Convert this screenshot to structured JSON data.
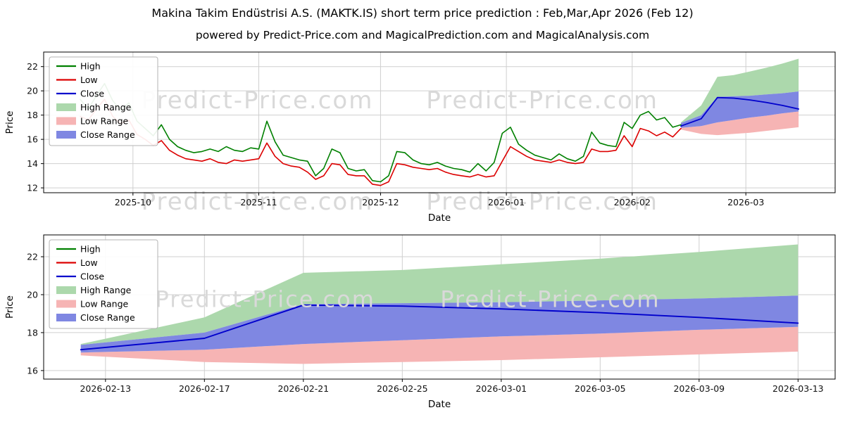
{
  "header": {
    "title": "Makina Takim Endüstrisi A.S. (MAKTK.IS) short term price prediction : Feb,Mar,Apr 2026 (Feb 12)",
    "subtitle": "powered by Predict-Price.com and MagicalPrediction.com and MagicalAnalysis.com"
  },
  "legend": {
    "items": [
      {
        "label": "High",
        "type": "line",
        "color": "high"
      },
      {
        "label": "Low",
        "type": "line",
        "color": "low"
      },
      {
        "label": "Close",
        "type": "line",
        "color": "close"
      },
      {
        "label": "High Range",
        "type": "patch",
        "color": "high_range"
      },
      {
        "label": "Low Range",
        "type": "patch",
        "color": "low_range"
      },
      {
        "label": "Close Range",
        "type": "patch",
        "color": "close_range"
      }
    ]
  },
  "chart_data": {
    "type": "line",
    "watermark": "Predict-Price.com",
    "colors": {
      "high": "#008000",
      "low": "#dc0000",
      "close": "#0000cc",
      "high_range": "#acd8ac",
      "low_range": "#f6b4b4",
      "close_range": "#7f87e2",
      "grid": "#cfcfcf",
      "watermark": "#d9d9d9",
      "tick_text": "#111111"
    },
    "history": {
      "x_unit": "days since 2025-09-17",
      "days": [
        0,
        2,
        4,
        6,
        8,
        10,
        12,
        14,
        16,
        18,
        20,
        22,
        24,
        26,
        28,
        30,
        32,
        34,
        36,
        38,
        40,
        42,
        44,
        46,
        48,
        50,
        52,
        54,
        56,
        58,
        60,
        62,
        64,
        66,
        68,
        70,
        72,
        74,
        76,
        78,
        80,
        82,
        84,
        86,
        88,
        90,
        92,
        94,
        96,
        98,
        100,
        102,
        104,
        106,
        108,
        110,
        112,
        114,
        116,
        118,
        120,
        122,
        124,
        126,
        128,
        130,
        132,
        134,
        136,
        138,
        140,
        142,
        144,
        146,
        148
      ],
      "high": [
        19.3,
        18.5,
        19.6,
        20.6,
        19.2,
        18.4,
        19.0,
        17.5,
        16.9,
        16.3,
        17.2,
        16.0,
        15.4,
        15.1,
        14.9,
        15.0,
        15.2,
        15.0,
        15.4,
        15.1,
        15.0,
        15.3,
        15.2,
        17.5,
        15.8,
        14.7,
        14.5,
        14.3,
        14.2,
        13.0,
        13.6,
        15.2,
        14.9,
        13.6,
        13.4,
        13.5,
        12.6,
        12.5,
        13.0,
        15.0,
        14.9,
        14.3,
        14.0,
        13.9,
        14.1,
        13.8,
        13.6,
        13.5,
        13.3,
        14.0,
        13.4,
        14.1,
        16.5,
        17.0,
        15.6,
        15.1,
        14.7,
        14.5,
        14.3,
        14.8,
        14.4,
        14.2,
        14.6,
        16.6,
        15.7,
        15.5,
        15.4,
        17.4,
        16.9,
        18.0,
        18.3,
        17.6,
        17.8,
        17.0,
        17.2
      ],
      "low": [
        17.9,
        17.6,
        18.5,
        19.3,
        17.9,
        17.3,
        17.6,
        16.4,
        16.0,
        15.5,
        15.9,
        15.1,
        14.7,
        14.4,
        14.3,
        14.2,
        14.4,
        14.1,
        14.0,
        14.3,
        14.2,
        14.3,
        14.4,
        15.7,
        14.6,
        14.0,
        13.8,
        13.7,
        13.3,
        12.7,
        13.0,
        14.0,
        13.9,
        13.1,
        13.0,
        13.0,
        12.3,
        12.2,
        12.5,
        14.0,
        13.9,
        13.7,
        13.6,
        13.5,
        13.6,
        13.3,
        13.1,
        13.0,
        12.9,
        13.1,
        12.9,
        13.0,
        14.2,
        15.4,
        15.0,
        14.6,
        14.3,
        14.2,
        14.1,
        14.3,
        14.1,
        14.0,
        14.1,
        15.2,
        15.0,
        15.0,
        15.1,
        16.3,
        15.4,
        16.9,
        16.7,
        16.3,
        16.6,
        16.2,
        16.9
      ]
    },
    "prediction": {
      "days": [
        148,
        153,
        157,
        161,
        165,
        169,
        173,
        177
      ],
      "dates": [
        "2026-02-12",
        "2026-02-17",
        "2026-02-21",
        "2026-02-25",
        "2026-03-01",
        "2026-03-05",
        "2026-03-09",
        "2026-03-13"
      ],
      "close": [
        17.1,
        17.7,
        19.45,
        19.4,
        19.25,
        19.05,
        18.8,
        18.5
      ],
      "high_range_upper": [
        17.4,
        18.8,
        21.15,
        21.3,
        21.6,
        21.9,
        22.25,
        22.65
      ],
      "high_range_lower": [
        17.35,
        18.0,
        19.5,
        19.55,
        19.6,
        19.7,
        19.8,
        19.95
      ],
      "close_range_upper": [
        17.35,
        18.0,
        19.5,
        19.55,
        19.6,
        19.7,
        19.8,
        19.95
      ],
      "close_range_lower": [
        16.95,
        17.1,
        17.4,
        17.6,
        17.8,
        17.95,
        18.15,
        18.3
      ],
      "low_range_upper": [
        16.95,
        17.1,
        17.4,
        17.6,
        17.8,
        17.95,
        18.15,
        18.3
      ],
      "low_range_lower": [
        16.8,
        16.45,
        16.35,
        16.45,
        16.55,
        16.7,
        16.85,
        17.0
      ]
    },
    "top_chart": {
      "xlabel": "Date",
      "ylabel": "Price",
      "xlim": [
        -9,
        186
      ],
      "ylim": [
        11.6,
        23.2
      ],
      "yticks": [
        12,
        14,
        16,
        18,
        20,
        22
      ],
      "xticks": [
        {
          "day": 13,
          "label": "2025-10"
        },
        {
          "day": 44,
          "label": "2025-11"
        },
        {
          "day": 74,
          "label": "2025-12"
        },
        {
          "day": 105,
          "label": "2026-01"
        },
        {
          "day": 136,
          "label": "2026-02"
        },
        {
          "day": 164,
          "label": "2026-03"
        }
      ],
      "watermarks": [
        {
          "fx": 0.27,
          "fy": 0.4
        },
        {
          "fx": 0.63,
          "fy": 0.4
        },
        {
          "fx": 0.27,
          "fy": 1.12
        },
        {
          "fx": 0.63,
          "fy": 1.12
        }
      ],
      "wm_size": 34
    },
    "bottom_chart": {
      "xlabel": "Date",
      "ylabel": "Price",
      "xlim": [
        146.5,
        178.5
      ],
      "ylim": [
        15.55,
        23.15
      ],
      "yticks": [
        16,
        18,
        20,
        22
      ],
      "xticks": [
        {
          "day": 149,
          "label": "2026-02-13"
        },
        {
          "day": 153,
          "label": "2026-02-17"
        },
        {
          "day": 157,
          "label": "2026-02-21"
        },
        {
          "day": 161,
          "label": "2026-02-25"
        },
        {
          "day": 165,
          "label": "2026-03-01"
        },
        {
          "day": 169,
          "label": "2026-03-05"
        },
        {
          "day": 173,
          "label": "2026-03-09"
        },
        {
          "day": 177,
          "label": "2026-03-13"
        }
      ],
      "watermarks": [
        {
          "fx": 0.28,
          "fy": 0.5
        },
        {
          "fx": 0.64,
          "fy": 0.5
        }
      ],
      "wm_size": 32
    }
  }
}
